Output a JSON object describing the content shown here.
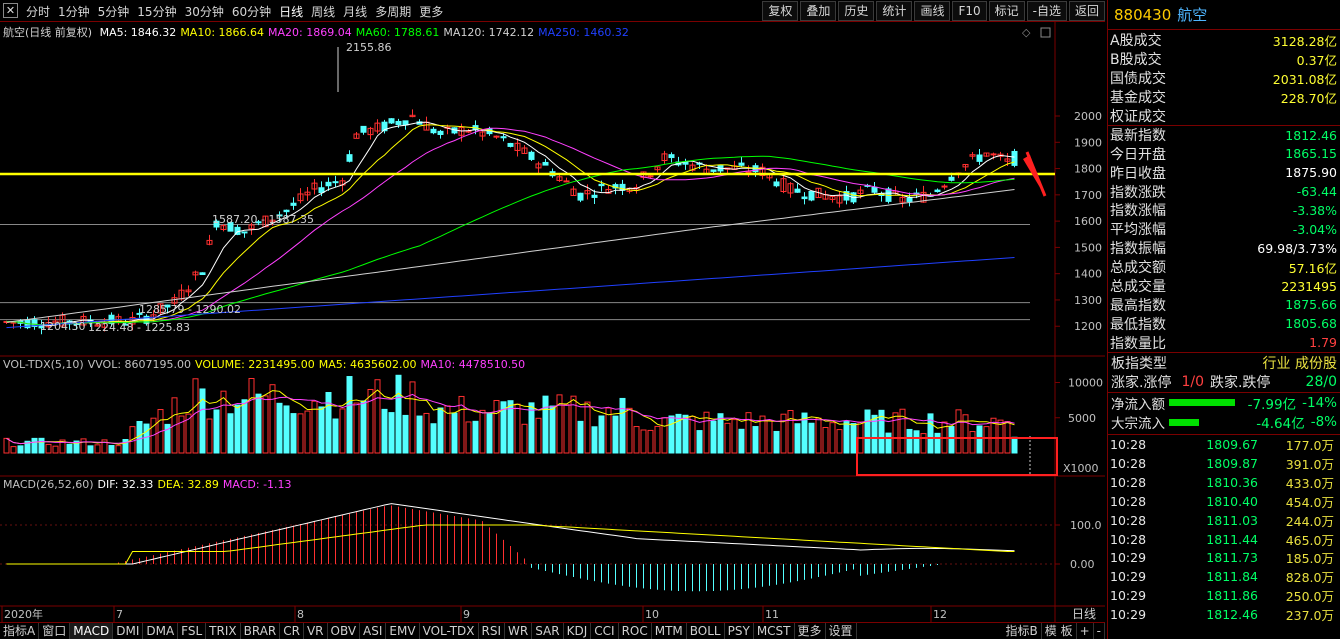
{
  "toolbar": {
    "periods": [
      "分时",
      "1分钟",
      "5分钟",
      "15分钟",
      "30分钟",
      "60分钟",
      "日线",
      "周线",
      "月线",
      "多周期",
      "更多"
    ],
    "active_period": "日线",
    "tools": [
      "复权",
      "叠加",
      "历史",
      "统计",
      "画线",
      "F10",
      "标记",
      "-自选",
      "返回"
    ]
  },
  "price_panel": {
    "title": "航空(日线 前复权)",
    "ma_labels": [
      {
        "text": "MA5: 1846.32",
        "color": "#ffffff"
      },
      {
        "text": "MA10: 1866.64",
        "color": "#ffff00"
      },
      {
        "text": "MA20: 1869.04",
        "color": "#ff40ff"
      },
      {
        "text": "MA60: 1788.61",
        "color": "#00ff00"
      },
      {
        "text": "MA120: 1742.12",
        "color": "#d0d0d0"
      },
      {
        "text": "MA250: 1460.32",
        "color": "#2040ff"
      }
    ],
    "y_ticks": [
      "2000",
      "1900",
      "1800",
      "1700",
      "1600",
      "1500",
      "1400",
      "1300",
      "1200"
    ],
    "annotations": [
      "2155.86",
      "1587.20 - 1587.35",
      "1285.79 - 1290.02",
      "1204.30",
      "1224.48 - 1225.83"
    ]
  },
  "volume_panel": {
    "legend": [
      {
        "text": "VOL-TDX(5,10)",
        "color": "#c0c0c0"
      },
      {
        "text": "VVOL: 8607195.00",
        "color": "#c0c0c0"
      },
      {
        "text": "VOLUME: 2231495.00",
        "color": "#ffff00"
      },
      {
        "text": "MA5: 4635602.00",
        "color": "#ffff00"
      },
      {
        "text": "MA10: 4478510.50",
        "color": "#ff40ff"
      }
    ],
    "y_ticks": [
      "10000",
      "5000"
    ],
    "unit": "X1000"
  },
  "macd_panel": {
    "legend": [
      {
        "text": "MACD(26,52,60)",
        "color": "#c0c0c0"
      },
      {
        "text": "DIF: 32.33",
        "color": "#ffffff"
      },
      {
        "text": "DEA: 32.89",
        "color": "#ffff00"
      },
      {
        "text": "MACD: -1.13",
        "color": "#ff40ff"
      }
    ],
    "y_ticks": [
      "100.0",
      "0.00"
    ]
  },
  "x_axis": {
    "labels": [
      "2020年",
      "7",
      "8",
      "9",
      "10",
      "11",
      "12"
    ],
    "period_label": "日线"
  },
  "bottom_tabs": [
    "指标A",
    "窗口",
    "MACD",
    "DMI",
    "DMA",
    "FSL",
    "TRIX",
    "BRAR",
    "CR",
    "VR",
    "OBV",
    "ASI",
    "EMV",
    "VOL-TDX",
    "RSI",
    "WR",
    "SAR",
    "KDJ",
    "CCI",
    "ROC",
    "MTM",
    "BOLL",
    "PSY",
    "MCST",
    "更多",
    "设置"
  ],
  "bottom_right_tabs": [
    "指标B",
    "模 板",
    "+",
    "-"
  ],
  "active_bottom_tab": "MACD",
  "right_panel": {
    "code": "880430",
    "name": "航空",
    "stats": [
      {
        "label": "A股成交",
        "value": "3128.28亿",
        "color": "yellow"
      },
      {
        "label": "B股成交",
        "value": "0.37亿",
        "color": "yellow"
      },
      {
        "label": "国债成交",
        "value": "2031.08亿",
        "color": "yellow"
      },
      {
        "label": "基金成交",
        "value": "228.70亿",
        "color": "yellow"
      },
      {
        "label": "权证成交",
        "value": "",
        "color": "yellow"
      },
      {
        "label": "最新指数",
        "value": "1812.46",
        "color": "green"
      },
      {
        "label": "今日开盘",
        "value": "1865.15",
        "color": "green"
      },
      {
        "label": "昨日收盘",
        "value": "1875.90",
        "color": "white"
      },
      {
        "label": "指数涨跌",
        "value": "-63.44",
        "color": "green"
      },
      {
        "label": "指数涨幅",
        "value": "-3.38%",
        "color": "green"
      },
      {
        "label": "平均涨幅",
        "value": "-3.04%",
        "color": "green"
      },
      {
        "label": "指数振幅",
        "value": "69.98/3.73%",
        "color": "white"
      },
      {
        "label": "总成交额",
        "value": "57.16亿",
        "color": "yellow"
      },
      {
        "label": "总成交量",
        "value": "2231495",
        "color": "yellow"
      },
      {
        "label": "最高指数",
        "value": "1875.66",
        "color": "green"
      },
      {
        "label": "最低指数",
        "value": "1805.68",
        "color": "green"
      },
      {
        "label": "指数量比",
        "value": "1.79",
        "color": "red"
      }
    ],
    "board_type_label": "板指类型",
    "board_type_value": "行业 成份股",
    "updown": {
      "rise_label": "涨家.涨停",
      "rise_value": "1/0",
      "fall_label": "跌家.跌停",
      "fall_value": "28/0"
    },
    "flows": [
      {
        "label": "净流入额",
        "value": "-7.99亿",
        "pct": "-14%"
      },
      {
        "label": "大宗流入",
        "value": "-4.64亿",
        "pct": "-8%"
      }
    ],
    "ticks": [
      {
        "time": "10:28",
        "price": "1809.67",
        "amount": "177.0万"
      },
      {
        "time": "10:28",
        "price": "1809.87",
        "amount": "391.0万"
      },
      {
        "time": "10:28",
        "price": "1810.36",
        "amount": "433.0万"
      },
      {
        "time": "10:28",
        "price": "1810.40",
        "amount": "454.0万"
      },
      {
        "time": "10:28",
        "price": "1811.03",
        "amount": "244.0万"
      },
      {
        "time": "10:28",
        "price": "1811.44",
        "amount": "465.0万"
      },
      {
        "time": "10:29",
        "price": "1811.73",
        "amount": "185.0万"
      },
      {
        "time": "10:29",
        "price": "1811.84",
        "amount": "828.0万"
      },
      {
        "time": "10:29",
        "price": "1811.86",
        "amount": "250.0万"
      },
      {
        "time": "10:29",
        "price": "1812.46",
        "amount": "237.0万"
      }
    ]
  },
  "colors": {
    "up": "#ff3030",
    "down": "#54ffff",
    "highlight_line": "#ffff00",
    "annotation_box": "#ff2020",
    "axis_red": "#7a0000"
  }
}
